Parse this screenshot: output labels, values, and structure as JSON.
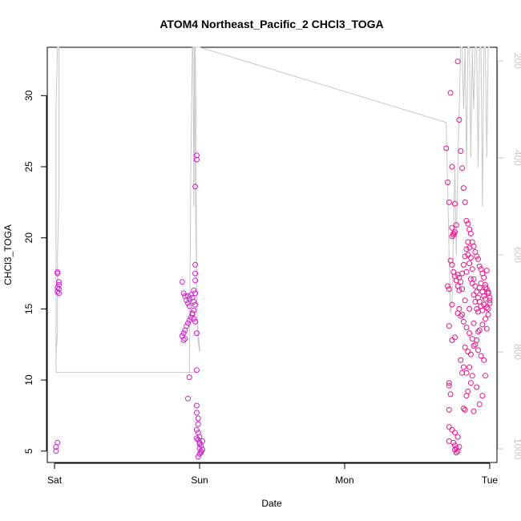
{
  "chart_data": {
    "type": "scatter",
    "title": "ATOM4 Northeast_Pacific_2 CHCl3_TOGA",
    "xlabel": "Date",
    "ylabel": "CHCl3_TOGA",
    "x_ticks": [
      "Sat",
      "Sun",
      "Mon",
      "Tue"
    ],
    "x_range_days": [
      -0.05,
      3.05
    ],
    "ylim": [
      4.2,
      33.4
    ],
    "y_ticks": [
      5,
      10,
      15,
      20,
      25,
      30
    ],
    "y2_ticks": [
      200,
      400,
      600,
      800,
      1000
    ],
    "y2lim": [
      1028,
      172
    ],
    "colors": {
      "series_a": "#e8168c",
      "series_b": "#cc22cc",
      "line": "#c8c8c8",
      "axis": "#000000",
      "axis_right": "#c8c8c8"
    },
    "series": [
      {
        "marker": "circle",
        "color_key": "series_b",
        "points": [
          [
            0.02,
            17.6
          ],
          [
            0.02,
            17.5
          ],
          [
            0.03,
            16.9
          ],
          [
            0.03,
            16.7
          ],
          [
            0.02,
            16.5
          ],
          [
            0.03,
            16.4
          ],
          [
            0.02,
            16.2
          ],
          [
            0.03,
            16.1
          ],
          [
            0.02,
            5.6
          ],
          [
            0.01,
            5.3
          ],
          [
            0.01,
            5.0
          ],
          [
            0.88,
            16.9
          ],
          [
            0.89,
            16.1
          ],
          [
            0.9,
            15.9
          ],
          [
            0.91,
            15.6
          ],
          [
            0.92,
            15.4
          ],
          [
            0.93,
            15.2
          ],
          [
            0.94,
            16.0
          ],
          [
            0.95,
            15.8
          ],
          [
            0.96,
            15.5
          ],
          [
            0.97,
            15.3
          ],
          [
            0.96,
            14.9
          ],
          [
            0.95,
            14.6
          ],
          [
            0.94,
            14.4
          ],
          [
            0.93,
            14.2
          ],
          [
            0.92,
            14.0
          ],
          [
            0.91,
            13.8
          ],
          [
            0.9,
            13.5
          ],
          [
            0.89,
            13.3
          ],
          [
            0.88,
            13.1
          ],
          [
            0.89,
            12.8
          ],
          [
            0.9,
            12.9
          ],
          [
            0.97,
            14.1
          ],
          [
            0.96,
            14.3
          ],
          [
            0.95,
            14.7
          ],
          [
            0.97,
            16.1
          ],
          [
            0.96,
            16.3
          ],
          [
            0.97,
            17.0
          ],
          [
            0.97,
            17.5
          ],
          [
            0.97,
            18.1
          ],
          [
            0.98,
            13.3
          ],
          [
            0.93,
            15.7
          ],
          [
            0.92,
            15.9
          ],
          [
            0.98,
            25.8
          ],
          [
            0.98,
            25.5
          ],
          [
            0.97,
            23.6
          ],
          [
            0.93,
            10.2
          ],
          [
            0.92,
            8.7
          ],
          [
            0.98,
            10.7
          ],
          [
            0.98,
            8.2
          ],
          [
            0.98,
            7.7
          ],
          [
            0.99,
            7.3
          ],
          [
            0.99,
            6.9
          ],
          [
            0.98,
            6.5
          ],
          [
            0.99,
            6.3
          ],
          [
            1.0,
            6.0
          ],
          [
            0.99,
            5.8
          ],
          [
            1.0,
            5.6
          ],
          [
            1.01,
            5.4
          ],
          [
            1.0,
            5.2
          ],
          [
            1.01,
            5.0
          ],
          [
            1.0,
            4.8
          ],
          [
            0.99,
            4.6
          ],
          [
            1.02,
            5.1
          ],
          [
            1.02,
            5.7
          ],
          [
            0.98,
            5.9
          ],
          [
            1.01,
            4.9
          ],
          [
            1.0,
            5.5
          ]
        ]
      },
      {
        "marker": "circle",
        "color_key": "series_a",
        "points": [
          [
            2.7,
            26.3
          ],
          [
            2.73,
            30.2
          ],
          [
            2.72,
            22.5
          ],
          [
            2.74,
            20.7
          ],
          [
            2.75,
            20.2
          ],
          [
            2.76,
            20.4
          ],
          [
            2.77,
            20.9
          ],
          [
            2.78,
            32.4
          ],
          [
            2.79,
            28.3
          ],
          [
            2.8,
            26.1
          ],
          [
            2.81,
            24.9
          ],
          [
            2.82,
            23.5
          ],
          [
            2.83,
            22.5
          ],
          [
            2.84,
            21.2
          ],
          [
            2.85,
            21.0
          ],
          [
            2.86,
            20.6
          ],
          [
            2.87,
            20.3
          ],
          [
            2.88,
            19.7
          ],
          [
            2.89,
            19.4
          ],
          [
            2.9,
            19.0
          ],
          [
            2.91,
            18.7
          ],
          [
            2.92,
            18.5
          ],
          [
            2.93,
            18.0
          ],
          [
            2.94,
            17.8
          ],
          [
            2.95,
            17.5
          ],
          [
            2.96,
            17.2
          ],
          [
            2.97,
            16.7
          ],
          [
            2.98,
            16.4
          ],
          [
            2.99,
            16.1
          ],
          [
            3.0,
            15.8
          ],
          [
            2.71,
            23.9
          ],
          [
            2.74,
            25.0
          ],
          [
            2.76,
            22.4
          ],
          [
            2.71,
            16.6
          ],
          [
            2.72,
            16.4
          ],
          [
            2.73,
            18.4
          ],
          [
            2.74,
            18.1
          ],
          [
            2.75,
            17.6
          ],
          [
            2.76,
            17.3
          ],
          [
            2.77,
            17.0
          ],
          [
            2.78,
            16.6
          ],
          [
            2.79,
            16.3
          ],
          [
            2.8,
            16.9
          ],
          [
            2.81,
            17.5
          ],
          [
            2.82,
            18.1
          ],
          [
            2.83,
            18.7
          ],
          [
            2.84,
            19.2
          ],
          [
            2.85,
            19.7
          ],
          [
            2.86,
            19.3
          ],
          [
            2.87,
            18.6
          ],
          [
            2.88,
            17.8
          ],
          [
            2.89,
            17.1
          ],
          [
            2.9,
            16.6
          ],
          [
            2.91,
            16.2
          ],
          [
            2.92,
            15.8
          ],
          [
            2.93,
            15.5
          ],
          [
            2.94,
            15.2
          ],
          [
            2.95,
            14.9
          ],
          [
            2.96,
            15.3
          ],
          [
            2.97,
            15.7
          ],
          [
            2.98,
            15.1
          ],
          [
            2.99,
            14.6
          ],
          [
            3.0,
            15.4
          ],
          [
            2.72,
            13.8
          ],
          [
            2.74,
            12.8
          ],
          [
            2.76,
            13.0
          ],
          [
            2.78,
            14.7
          ],
          [
            2.8,
            14.5
          ],
          [
            2.82,
            14.1
          ],
          [
            2.84,
            13.7
          ],
          [
            2.86,
            13.3
          ],
          [
            2.88,
            12.9
          ],
          [
            2.9,
            12.5
          ],
          [
            2.92,
            12.1
          ],
          [
            2.94,
            11.7
          ],
          [
            2.96,
            11.4
          ],
          [
            2.98,
            13.6
          ],
          [
            2.83,
            12.3
          ],
          [
            2.85,
            12.0
          ],
          [
            2.87,
            11.8
          ],
          [
            2.89,
            12.4
          ],
          [
            2.91,
            12.8
          ],
          [
            2.93,
            13.5
          ],
          [
            2.95,
            13.9
          ],
          [
            2.97,
            14.3
          ],
          [
            2.99,
            15.0
          ],
          [
            2.8,
            11.4
          ],
          [
            2.82,
            10.9
          ],
          [
            2.84,
            10.5
          ],
          [
            2.86,
            10.9
          ],
          [
            2.88,
            10.3
          ],
          [
            2.81,
            10.5
          ],
          [
            2.72,
            9.8
          ],
          [
            2.72,
            9.6
          ],
          [
            2.73,
            9.0
          ],
          [
            2.72,
            7.9
          ],
          [
            2.72,
            6.7
          ],
          [
            2.74,
            6.5
          ],
          [
            2.76,
            6.3
          ],
          [
            2.78,
            6.0
          ],
          [
            2.75,
            5.6
          ],
          [
            2.76,
            5.4
          ],
          [
            2.77,
            5.2
          ],
          [
            2.78,
            5.0
          ],
          [
            2.77,
            4.9
          ],
          [
            2.76,
            5.1
          ],
          [
            2.79,
            5.3
          ],
          [
            2.72,
            5.7
          ],
          [
            2.82,
            8.0
          ],
          [
            2.83,
            7.9
          ],
          [
            2.84,
            8.9
          ],
          [
            2.85,
            9.2
          ],
          [
            2.87,
            9.8
          ],
          [
            2.89,
            7.8
          ],
          [
            2.91,
            9.5
          ],
          [
            2.93,
            8.3
          ],
          [
            2.95,
            8.9
          ],
          [
            2.97,
            10.3
          ],
          [
            2.75,
            20.3
          ],
          [
            2.74,
            20.1
          ],
          [
            2.78,
            17.4
          ],
          [
            2.79,
            17.2
          ],
          [
            2.81,
            16.4
          ],
          [
            2.84,
            17.6
          ],
          [
            2.85,
            18.8
          ],
          [
            2.86,
            18.2
          ],
          [
            2.87,
            17.1
          ],
          [
            2.88,
            16.8
          ],
          [
            2.89,
            16.0
          ],
          [
            2.9,
            15.5
          ],
          [
            2.91,
            15.0
          ],
          [
            2.92,
            14.8
          ],
          [
            2.93,
            16.5
          ],
          [
            2.94,
            16.8
          ],
          [
            2.95,
            16.2
          ],
          [
            2.96,
            15.9
          ],
          [
            2.97,
            16.5
          ],
          [
            2.98,
            17.7
          ],
          [
            2.99,
            16.2
          ],
          [
            3.0,
            15.6
          ],
          [
            2.74,
            15.3
          ],
          [
            2.79,
            15.0
          ],
          [
            2.81,
            14.6
          ],
          [
            2.83,
            15.6
          ],
          [
            2.86,
            15.0
          ],
          [
            2.89,
            14.0
          ],
          [
            2.92,
            13.4
          ]
        ]
      }
    ],
    "line": {
      "axis": "right",
      "points": [
        [
          0.01,
          842
        ],
        [
          0.01,
          810
        ],
        [
          0.02,
          760
        ],
        [
          0.02,
          700
        ],
        [
          0.02,
          600
        ],
        [
          0.03,
          480
        ],
        [
          0.03,
          350
        ],
        [
          0.03,
          300
        ],
        [
          0.03,
          240
        ],
        [
          0.03,
          172
        ],
        [
          0.03,
          172
        ],
        [
          0.02,
          172
        ],
        [
          0.01,
          300
        ],
        [
          0.01,
          820
        ],
        [
          0.01,
          842
        ],
        [
          0.5,
          842
        ],
        [
          0.99,
          842
        ],
        [
          0.93,
          842
        ],
        [
          0.94,
          400
        ],
        [
          0.95,
          172
        ],
        [
          0.955,
          172
        ],
        [
          0.96,
          500
        ],
        [
          0.965,
          172
        ],
        [
          0.97,
          172
        ],
        [
          0.975,
          300
        ],
        [
          0.98,
          700
        ],
        [
          0.99,
          760
        ],
        [
          1.0,
          790
        ],
        [
          1.0,
          800
        ],
        [
          0.99,
          780
        ],
        [
          0.98,
          680
        ],
        [
          0.97,
          450
        ],
        [
          0.965,
          172
        ],
        [
          0.96,
          172
        ],
        [
          1.0,
          172
        ],
        [
          2.7,
          327
        ],
        [
          2.72,
          600
        ],
        [
          2.73,
          720
        ],
        [
          2.74,
          700
        ],
        [
          2.75,
          560
        ],
        [
          2.76,
          420
        ],
        [
          2.77,
          600
        ],
        [
          2.78,
          420
        ],
        [
          2.79,
          300
        ],
        [
          2.8,
          172
        ],
        [
          2.81,
          172
        ],
        [
          2.82,
          300
        ],
        [
          2.83,
          172
        ],
        [
          2.84,
          420
        ],
        [
          2.85,
          172
        ],
        [
          2.86,
          172
        ],
        [
          2.87,
          400
        ],
        [
          2.88,
          172
        ],
        [
          2.89,
          300
        ],
        [
          2.9,
          172
        ],
        [
          2.91,
          172
        ],
        [
          2.92,
          420
        ],
        [
          2.93,
          172
        ],
        [
          2.94,
          172
        ],
        [
          2.95,
          500
        ],
        [
          2.96,
          172
        ],
        [
          2.97,
          172
        ],
        [
          2.98,
          400
        ],
        [
          2.99,
          172
        ],
        [
          3.0,
          172
        ]
      ]
    }
  }
}
